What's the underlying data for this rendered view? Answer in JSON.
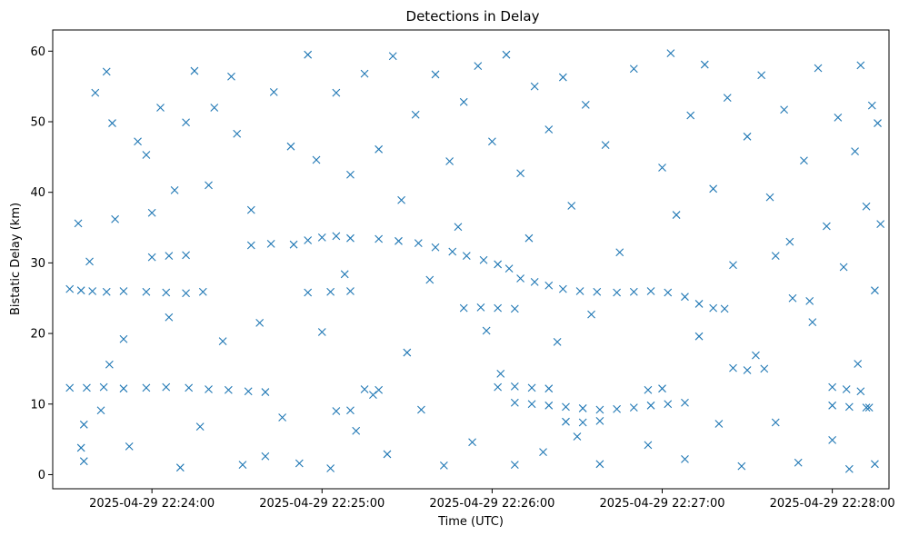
{
  "chart_data": {
    "type": "scatter",
    "title": "Detections in Delay",
    "xlabel": "Time (UTC)",
    "ylabel": "Bistatic Delay (km)",
    "x_axis_type": "time",
    "xlim": [
      "2025-04-29 22:23:25",
      "2025-04-29 22:28:20"
    ],
    "ylim": [
      -2,
      63
    ],
    "x_ticks": [
      "2025-04-29 22:24:00",
      "2025-04-29 22:25:00",
      "2025-04-29 22:26:00",
      "2025-04-29 22:27:00",
      "2025-04-29 22:28:00"
    ],
    "y_ticks": [
      "0",
      "10",
      "20",
      "30",
      "40",
      "50",
      "60"
    ],
    "grid": false,
    "legend": "none",
    "marker": "x",
    "colors": {
      "series": "#1f77b4"
    },
    "series": [
      {
        "points": [
          [
            "2025-04-29 22:23:31",
            26.3
          ],
          [
            "2025-04-29 22:23:35",
            26.1
          ],
          [
            "2025-04-29 22:23:39",
            26.0
          ],
          [
            "2025-04-29 22:23:44",
            25.9
          ],
          [
            "2025-04-29 22:23:50",
            26.0
          ],
          [
            "2025-04-29 22:23:58",
            25.9
          ],
          [
            "2025-04-29 22:24:05",
            25.8
          ],
          [
            "2025-04-29 22:24:12",
            25.7
          ],
          [
            "2025-04-29 22:24:18",
            25.9
          ],
          [
            "2025-04-29 22:23:31",
            12.3
          ],
          [
            "2025-04-29 22:23:37",
            12.3
          ],
          [
            "2025-04-29 22:23:43",
            12.4
          ],
          [
            "2025-04-29 22:23:50",
            12.2
          ],
          [
            "2025-04-29 22:23:58",
            12.3
          ],
          [
            "2025-04-29 22:24:05",
            12.4
          ],
          [
            "2025-04-29 22:24:13",
            12.3
          ],
          [
            "2025-04-29 22:24:20",
            12.1
          ],
          [
            "2025-04-29 22:24:27",
            12.0
          ],
          [
            "2025-04-29 22:24:34",
            11.8
          ],
          [
            "2025-04-29 22:24:40",
            11.7
          ],
          [
            "2025-04-29 22:24:00",
            30.8
          ],
          [
            "2025-04-29 22:24:06",
            31.0
          ],
          [
            "2025-04-29 22:24:12",
            31.1
          ],
          [
            "2025-04-29 22:24:35",
            32.5
          ],
          [
            "2025-04-29 22:24:42",
            32.7
          ],
          [
            "2025-04-29 22:24:50",
            32.6
          ],
          [
            "2025-04-29 22:24:55",
            33.2
          ],
          [
            "2025-04-29 22:25:00",
            33.6
          ],
          [
            "2025-04-29 22:25:05",
            33.8
          ],
          [
            "2025-04-29 22:25:10",
            33.5
          ],
          [
            "2025-04-29 22:25:20",
            33.4
          ],
          [
            "2025-04-29 22:25:27",
            33.1
          ],
          [
            "2025-04-29 22:25:34",
            32.8
          ],
          [
            "2025-04-29 22:25:40",
            32.2
          ],
          [
            "2025-04-29 22:25:46",
            31.6
          ],
          [
            "2025-04-29 22:25:51",
            31.0
          ],
          [
            "2025-04-29 22:25:57",
            30.4
          ],
          [
            "2025-04-29 22:26:02",
            29.8
          ],
          [
            "2025-04-29 22:26:06",
            29.2
          ],
          [
            "2025-04-29 22:26:10",
            27.8
          ],
          [
            "2025-04-29 22:26:15",
            27.3
          ],
          [
            "2025-04-29 22:26:20",
            26.8
          ],
          [
            "2025-04-29 22:26:25",
            26.3
          ],
          [
            "2025-04-29 22:26:31",
            26.0
          ],
          [
            "2025-04-29 22:26:37",
            25.9
          ],
          [
            "2025-04-29 22:26:44",
            25.8
          ],
          [
            "2025-04-29 22:26:50",
            25.9
          ],
          [
            "2025-04-29 22:26:56",
            26.0
          ],
          [
            "2025-04-29 22:27:02",
            25.8
          ],
          [
            "2025-04-29 22:27:08",
            25.2
          ],
          [
            "2025-04-29 22:27:13",
            24.2
          ],
          [
            "2025-04-29 22:27:18",
            23.6
          ],
          [
            "2025-04-29 22:27:22",
            23.5
          ],
          [
            "2025-04-29 22:25:50",
            23.6
          ],
          [
            "2025-04-29 22:25:56",
            23.7
          ],
          [
            "2025-04-29 22:26:02",
            23.6
          ],
          [
            "2025-04-29 22:26:08",
            23.5
          ],
          [
            "2025-04-29 22:24:55",
            25.8
          ],
          [
            "2025-04-29 22:25:03",
            25.9
          ],
          [
            "2025-04-29 22:25:10",
            26.0
          ],
          [
            "2025-04-29 22:25:05",
            9.0
          ],
          [
            "2025-04-29 22:25:10",
            9.1
          ],
          [
            "2025-04-29 22:25:15",
            12.1
          ],
          [
            "2025-04-29 22:25:20",
            12.0
          ],
          [
            "2025-04-29 22:26:02",
            12.4
          ],
          [
            "2025-04-29 22:26:08",
            12.5
          ],
          [
            "2025-04-29 22:26:14",
            12.3
          ],
          [
            "2025-04-29 22:26:20",
            12.2
          ],
          [
            "2025-04-29 22:26:08",
            10.2
          ],
          [
            "2025-04-29 22:26:14",
            10.0
          ],
          [
            "2025-04-29 22:26:20",
            9.8
          ],
          [
            "2025-04-29 22:26:26",
            9.6
          ],
          [
            "2025-04-29 22:26:32",
            9.4
          ],
          [
            "2025-04-29 22:26:38",
            9.2
          ],
          [
            "2025-04-29 22:26:44",
            9.3
          ],
          [
            "2025-04-29 22:26:50",
            9.5
          ],
          [
            "2025-04-29 22:26:56",
            9.8
          ],
          [
            "2025-04-29 22:27:02",
            10.0
          ],
          [
            "2025-04-29 22:27:08",
            10.2
          ],
          [
            "2025-04-29 22:26:26",
            7.5
          ],
          [
            "2025-04-29 22:26:32",
            7.4
          ],
          [
            "2025-04-29 22:26:38",
            7.6
          ],
          [
            "2025-04-29 22:26:55",
            12.0
          ],
          [
            "2025-04-29 22:27:00",
            12.2
          ],
          [
            "2025-04-29 22:27:25",
            15.1
          ],
          [
            "2025-04-29 22:27:30",
            14.8
          ],
          [
            "2025-04-29 22:27:36",
            15.0
          ],
          [
            "2025-04-29 22:27:40",
            31.0
          ],
          [
            "2025-04-29 22:27:46",
            25.0
          ],
          [
            "2025-04-29 22:27:52",
            24.6
          ],
          [
            "2025-04-29 22:28:00",
            12.4
          ],
          [
            "2025-04-29 22:28:05",
            12.1
          ],
          [
            "2025-04-29 22:28:10",
            11.8
          ],
          [
            "2025-04-29 22:28:00",
            9.8
          ],
          [
            "2025-04-29 22:28:06",
            9.6
          ],
          [
            "2025-04-29 22:28:12",
            9.5
          ],
          [
            "2025-04-29 22:23:34",
            35.6
          ],
          [
            "2025-04-29 22:23:38",
            30.2
          ],
          [
            "2025-04-29 22:23:40",
            54.1
          ],
          [
            "2025-04-29 22:23:44",
            57.1
          ],
          [
            "2025-04-29 22:23:46",
            49.8
          ],
          [
            "2025-04-29 22:23:47",
            36.2
          ],
          [
            "2025-04-29 22:23:50",
            19.2
          ],
          [
            "2025-04-29 22:23:36",
            7.1
          ],
          [
            "2025-04-29 22:23:35",
            3.8
          ],
          [
            "2025-04-29 22:23:36",
            1.9
          ],
          [
            "2025-04-29 22:23:42",
            9.1
          ],
          [
            "2025-04-29 22:23:45",
            15.6
          ],
          [
            "2025-04-29 22:23:52",
            4.0
          ],
          [
            "2025-04-29 22:23:55",
            47.2
          ],
          [
            "2025-04-29 22:23:58",
            45.3
          ],
          [
            "2025-04-29 22:24:00",
            37.1
          ],
          [
            "2025-04-29 22:24:03",
            52.0
          ],
          [
            "2025-04-29 22:24:06",
            22.3
          ],
          [
            "2025-04-29 22:24:08",
            40.3
          ],
          [
            "2025-04-29 22:24:10",
            1.0
          ],
          [
            "2025-04-29 22:24:12",
            49.9
          ],
          [
            "2025-04-29 22:24:15",
            57.2
          ],
          [
            "2025-04-29 22:24:17",
            6.8
          ],
          [
            "2025-04-29 22:24:20",
            41.0
          ],
          [
            "2025-04-29 22:24:22",
            52.0
          ],
          [
            "2025-04-29 22:24:25",
            18.9
          ],
          [
            "2025-04-29 22:24:28",
            56.4
          ],
          [
            "2025-04-29 22:24:30",
            48.3
          ],
          [
            "2025-04-29 22:24:32",
            1.4
          ],
          [
            "2025-04-29 22:24:35",
            37.5
          ],
          [
            "2025-04-29 22:24:38",
            21.5
          ],
          [
            "2025-04-29 22:24:40",
            2.6
          ],
          [
            "2025-04-29 22:24:43",
            54.2
          ],
          [
            "2025-04-29 22:24:46",
            8.1
          ],
          [
            "2025-04-29 22:24:49",
            46.5
          ],
          [
            "2025-04-29 22:24:52",
            1.6
          ],
          [
            "2025-04-29 22:24:55",
            59.5
          ],
          [
            "2025-04-29 22:24:58",
            44.6
          ],
          [
            "2025-04-29 22:25:00",
            20.2
          ],
          [
            "2025-04-29 22:25:03",
            0.9
          ],
          [
            "2025-04-29 22:25:05",
            54.1
          ],
          [
            "2025-04-29 22:25:08",
            28.4
          ],
          [
            "2025-04-29 22:25:10",
            42.5
          ],
          [
            "2025-04-29 22:25:12",
            6.2
          ],
          [
            "2025-04-29 22:25:15",
            56.8
          ],
          [
            "2025-04-29 22:25:18",
            11.3
          ],
          [
            "2025-04-29 22:25:20",
            46.1
          ],
          [
            "2025-04-29 22:25:23",
            2.9
          ],
          [
            "2025-04-29 22:25:25",
            59.3
          ],
          [
            "2025-04-29 22:25:28",
            38.9
          ],
          [
            "2025-04-29 22:25:30",
            17.3
          ],
          [
            "2025-04-29 22:25:33",
            51.0
          ],
          [
            "2025-04-29 22:25:35",
            9.2
          ],
          [
            "2025-04-29 22:25:38",
            27.6
          ],
          [
            "2025-04-29 22:25:40",
            56.7
          ],
          [
            "2025-04-29 22:25:43",
            1.3
          ],
          [
            "2025-04-29 22:25:45",
            44.4
          ],
          [
            "2025-04-29 22:25:48",
            35.1
          ],
          [
            "2025-04-29 22:25:50",
            52.8
          ],
          [
            "2025-04-29 22:25:53",
            4.6
          ],
          [
            "2025-04-29 22:25:55",
            57.9
          ],
          [
            "2025-04-29 22:25:58",
            20.4
          ],
          [
            "2025-04-29 22:26:00",
            47.2
          ],
          [
            "2025-04-29 22:26:03",
            14.3
          ],
          [
            "2025-04-29 22:26:05",
            59.5
          ],
          [
            "2025-04-29 22:26:08",
            1.4
          ],
          [
            "2025-04-29 22:26:10",
            42.7
          ],
          [
            "2025-04-29 22:26:13",
            33.5
          ],
          [
            "2025-04-29 22:26:15",
            55.0
          ],
          [
            "2025-04-29 22:26:18",
            3.2
          ],
          [
            "2025-04-29 22:26:20",
            48.9
          ],
          [
            "2025-04-29 22:26:23",
            18.8
          ],
          [
            "2025-04-29 22:26:25",
            56.3
          ],
          [
            "2025-04-29 22:26:28",
            38.1
          ],
          [
            "2025-04-29 22:26:30",
            5.4
          ],
          [
            "2025-04-29 22:26:33",
            52.4
          ],
          [
            "2025-04-29 22:26:35",
            22.7
          ],
          [
            "2025-04-29 22:26:38",
            1.5
          ],
          [
            "2025-04-29 22:26:40",
            46.7
          ],
          [
            "2025-04-29 22:26:45",
            31.5
          ],
          [
            "2025-04-29 22:26:50",
            57.5
          ],
          [
            "2025-04-29 22:26:55",
            4.2
          ],
          [
            "2025-04-29 22:27:00",
            43.5
          ],
          [
            "2025-04-29 22:27:03",
            59.7
          ],
          [
            "2025-04-29 22:27:05",
            36.8
          ],
          [
            "2025-04-29 22:27:08",
            2.2
          ],
          [
            "2025-04-29 22:27:10",
            50.9
          ],
          [
            "2025-04-29 22:27:13",
            19.6
          ],
          [
            "2025-04-29 22:27:15",
            58.1
          ],
          [
            "2025-04-29 22:27:18",
            40.5
          ],
          [
            "2025-04-29 22:27:20",
            7.2
          ],
          [
            "2025-04-29 22:27:23",
            53.4
          ],
          [
            "2025-04-29 22:27:25",
            29.7
          ],
          [
            "2025-04-29 22:27:28",
            1.2
          ],
          [
            "2025-04-29 22:27:30",
            47.9
          ],
          [
            "2025-04-29 22:27:33",
            16.9
          ],
          [
            "2025-04-29 22:27:35",
            56.6
          ],
          [
            "2025-04-29 22:27:38",
            39.3
          ],
          [
            "2025-04-29 22:27:40",
            7.4
          ],
          [
            "2025-04-29 22:27:43",
            51.7
          ],
          [
            "2025-04-29 22:27:45",
            33.0
          ],
          [
            "2025-04-29 22:27:48",
            1.7
          ],
          [
            "2025-04-29 22:27:50",
            44.5
          ],
          [
            "2025-04-29 22:27:53",
            21.6
          ],
          [
            "2025-04-29 22:27:55",
            57.6
          ],
          [
            "2025-04-29 22:27:58",
            35.2
          ],
          [
            "2025-04-29 22:28:00",
            4.9
          ],
          [
            "2025-04-29 22:28:02",
            50.6
          ],
          [
            "2025-04-29 22:28:04",
            29.4
          ],
          [
            "2025-04-29 22:28:06",
            0.8
          ],
          [
            "2025-04-29 22:28:08",
            45.8
          ],
          [
            "2025-04-29 22:28:09",
            15.7
          ],
          [
            "2025-04-29 22:28:10",
            58.0
          ],
          [
            "2025-04-29 22:28:12",
            38.0
          ],
          [
            "2025-04-29 22:28:13",
            9.5
          ],
          [
            "2025-04-29 22:28:14",
            52.3
          ],
          [
            "2025-04-29 22:28:15",
            26.1
          ],
          [
            "2025-04-29 22:28:15",
            1.5
          ],
          [
            "2025-04-29 22:28:16",
            49.8
          ],
          [
            "2025-04-29 22:28:17",
            35.5
          ]
        ]
      }
    ]
  }
}
